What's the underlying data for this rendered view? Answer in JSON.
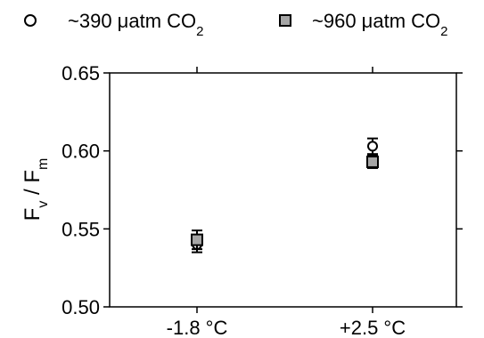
{
  "chart_data": {
    "type": "scatter",
    "categories": [
      "-1.8 °C",
      "+2.5 °C"
    ],
    "series": [
      {
        "name_prefix": "~390 ",
        "name_unit": "μatm CO",
        "name_sub": "2",
        "marker": "open-circle",
        "values": [
          0.54,
          0.603
        ],
        "errors": [
          0.005,
          0.005
        ]
      },
      {
        "name_prefix": "~960 ",
        "name_unit": "μatm CO",
        "name_sub": "2",
        "marker": "filled-square",
        "color": "#a6a6a6",
        "values": [
          0.543,
          0.593
        ],
        "errors": [
          0.006,
          0.004
        ]
      }
    ],
    "y_ticks": [
      "0.50",
      "0.55",
      "0.60",
      "0.65"
    ],
    "ylim": [
      0.5,
      0.65
    ],
    "ylabel": {
      "main1": "F",
      "sub1": "v",
      "sep": " / ",
      "main2": "F",
      "sub2": "m"
    },
    "xlabel": "",
    "title": "",
    "grid": false,
    "legend_position": "top"
  }
}
